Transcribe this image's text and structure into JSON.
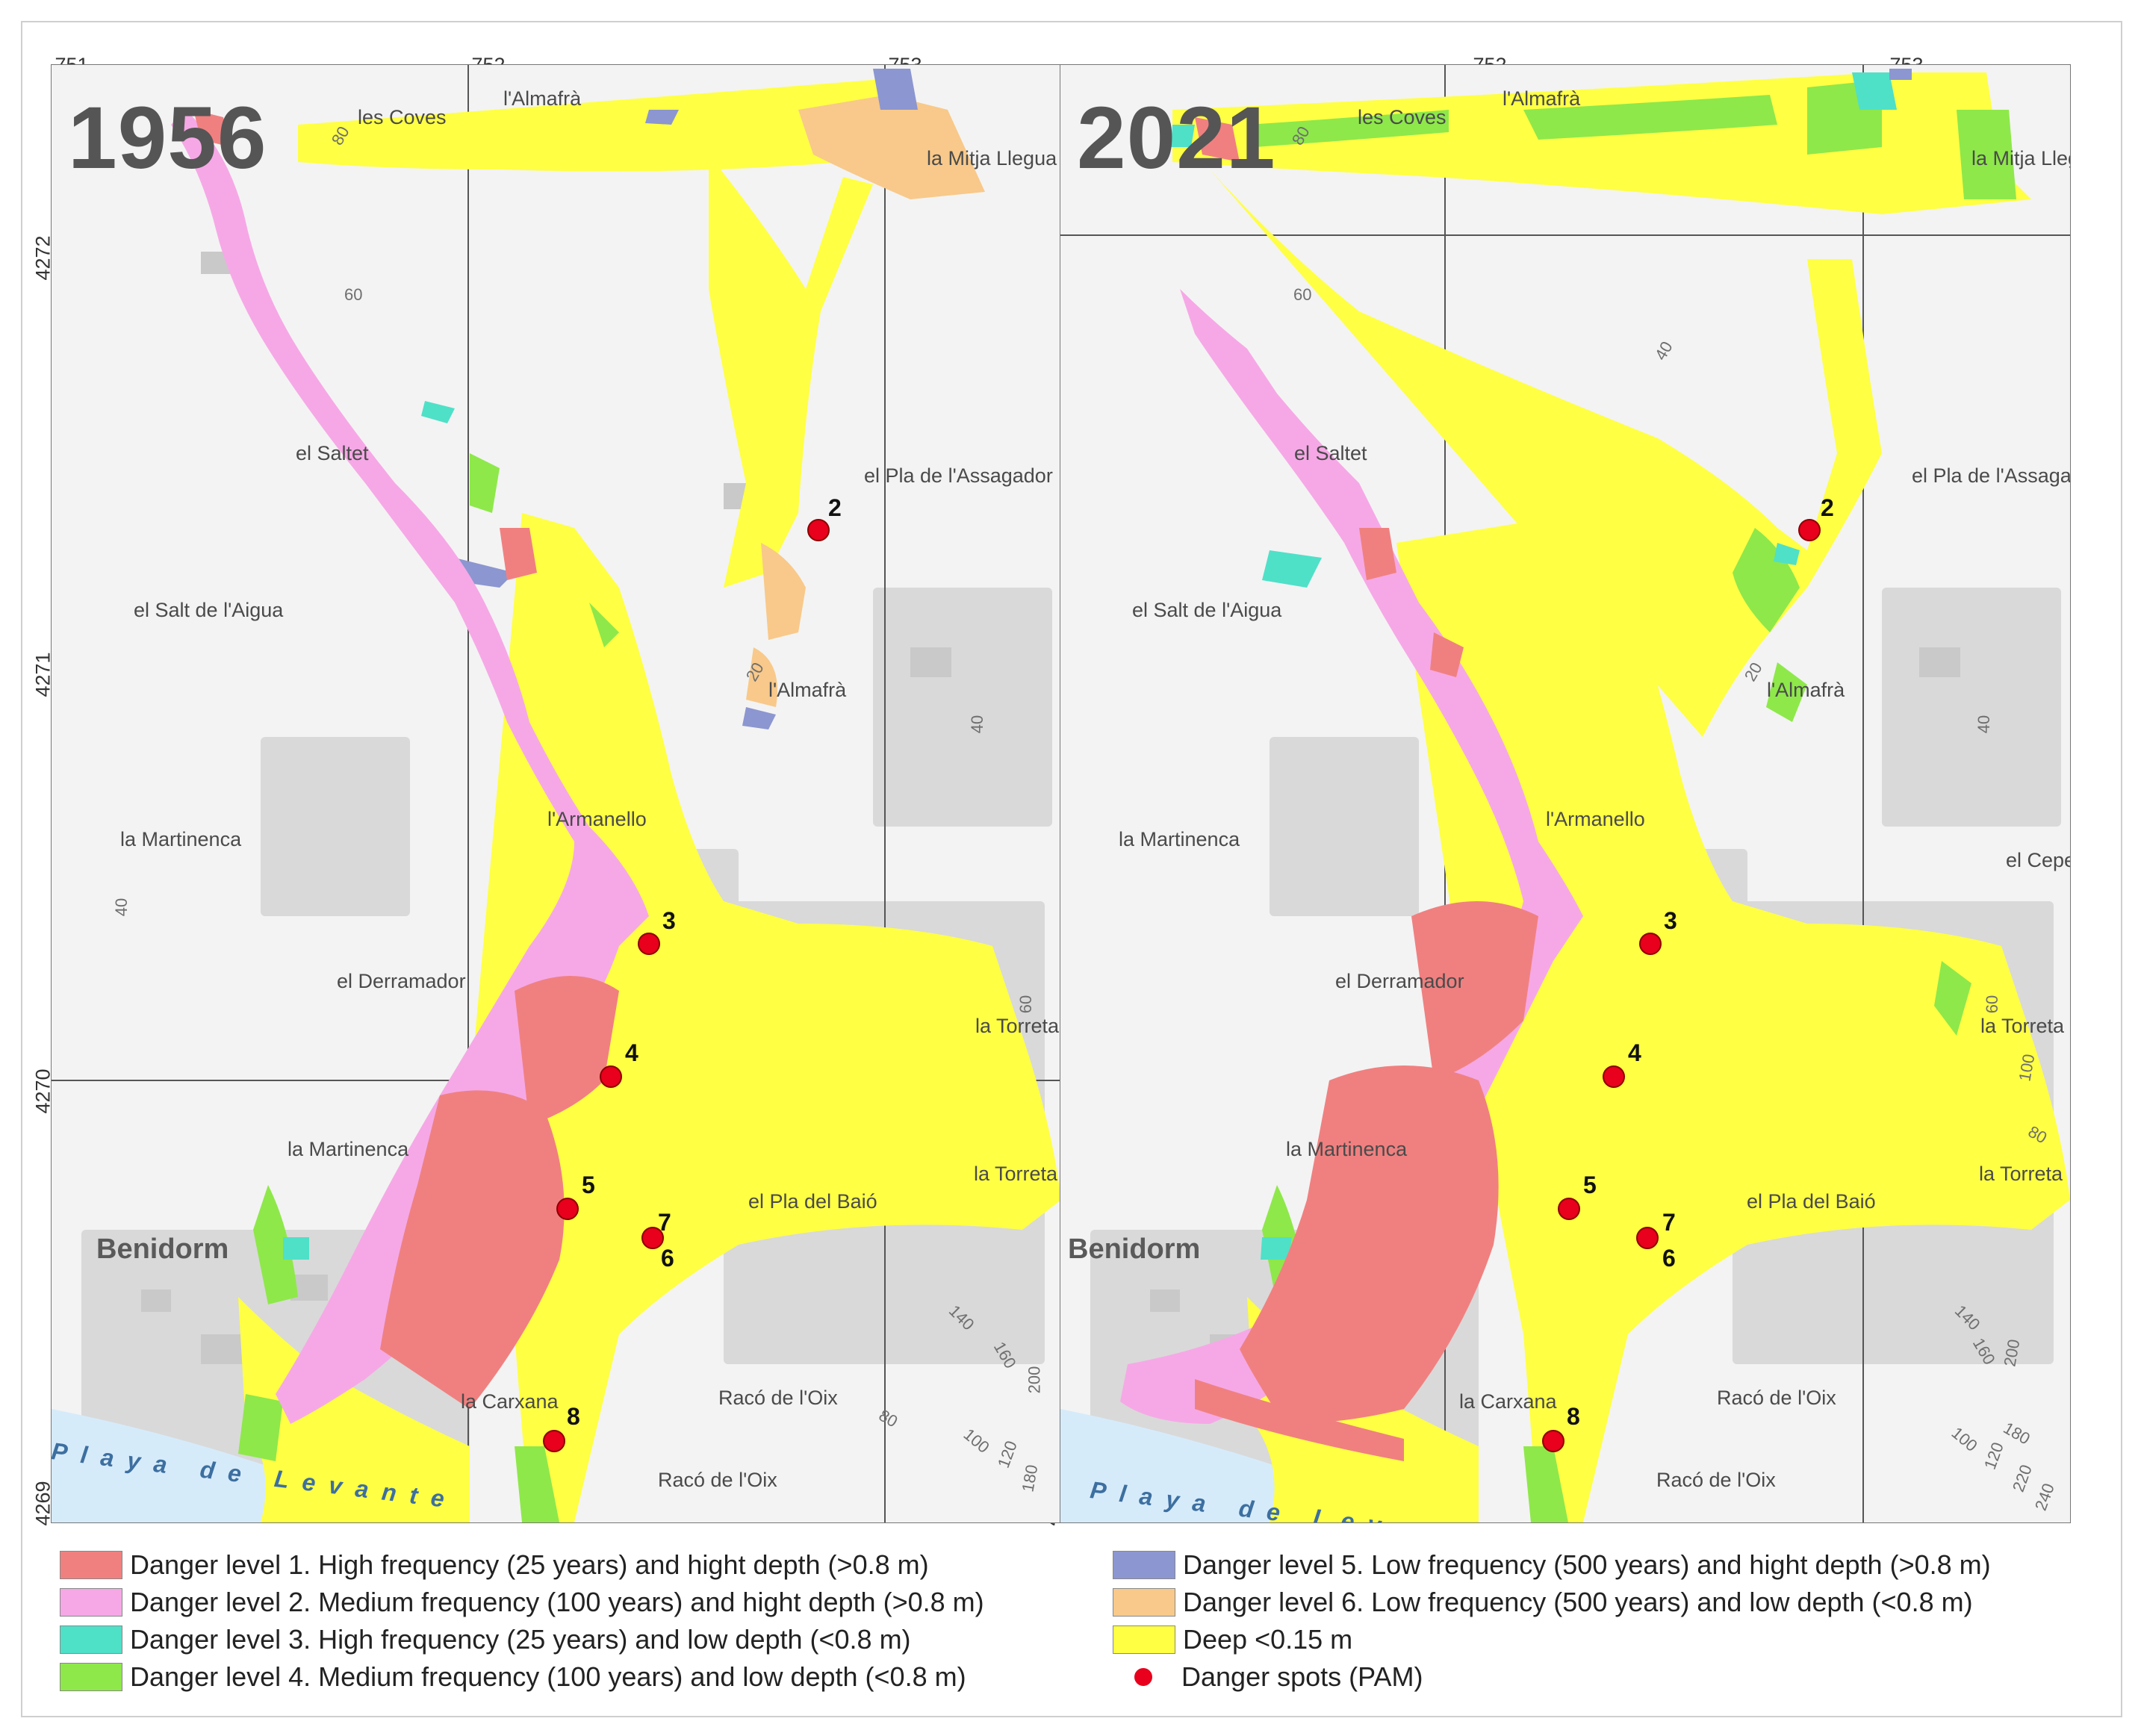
{
  "panels": [
    {
      "year": "1956",
      "x_ticks": [
        "751",
        "752",
        "753"
      ],
      "y_ticks": [
        "4272",
        "4271",
        "4270",
        "4269"
      ],
      "places": [
        "les Coves",
        "l'Almafrà",
        "la Mitja Llegua",
        "el Saltet",
        "el Pla de l'Assagador",
        "el Salt de l'Aigua",
        "l'Almafrà",
        "l'Armanello",
        "la Martinenca",
        "el Derramador",
        "la Torreta",
        "la Martinenca",
        "la Torreta",
        "el Pla del Baió",
        "Benidorm",
        "la Carxana",
        "Racó de l'Oix",
        "Racó de l'Oix"
      ],
      "coast": "Playa de Levante",
      "contours": [
        "80",
        "60",
        "20",
        "40",
        "40",
        "60",
        "140",
        "160",
        "200",
        "80",
        "100",
        "120",
        "180"
      ],
      "spots": [
        "2",
        "3",
        "4",
        "5",
        "7",
        "6",
        "8"
      ]
    },
    {
      "year": "2021",
      "x_ticks": [
        "752",
        "753"
      ],
      "y_ticks": [
        "4272",
        "4271",
        "4270",
        "4269"
      ],
      "places": [
        "les Coves",
        "l'Almafrà",
        "la Mitja Llegua",
        "el Saltet",
        "el Pla de l'Assagador",
        "el Salt de l'Aigua",
        "l'Almafrà",
        "l'Armanello",
        "la Martinenca",
        "el Cepellar",
        "el Derramador",
        "la Torreta",
        "la Martinenca",
        "la Torreta",
        "el Pla del Baió",
        "Benidorm",
        "la Carxana",
        "Racó de l'Oix",
        "Racó de l'Oix"
      ],
      "coast": "Playa de Levante",
      "contours": [
        "80",
        "60",
        "40",
        "20",
        "40",
        "60",
        "100",
        "80",
        "140",
        "160",
        "200",
        "180",
        "100",
        "120",
        "220",
        "240"
      ],
      "spots": [
        "2",
        "3",
        "4",
        "5",
        "7",
        "6",
        "8"
      ]
    }
  ],
  "legend": [
    {
      "label": "Danger level 1. High frequency (25  years) and  hight depth (>0.8 m)",
      "color": "#f08080"
    },
    {
      "label": "Danger level 2. Medium frequency (100  years)  and  hight depth (>0.8 m)",
      "color": "#f6a8e6"
    },
    {
      "label": "Danger level 3. High frequency (25  years) and  low depth (<0.8 m)",
      "color": "#4fe0c8"
    },
    {
      "label": "Danger level 4. Medium frequency (100 years) and  low depth (<0.8 m)",
      "color": "#8ee84a"
    },
    {
      "label": "Danger level 5. Low frequency (500  years)  and  hight depth (>0.8 m)",
      "color": "#8c96d0"
    },
    {
      "label": "Danger level 6. Low frequency (500  years) and  low depth (<0.8 m)",
      "color": "#f8c98a"
    },
    {
      "label": "Deep <0.15 m",
      "color": "#ffff44"
    },
    {
      "label": "Danger spots (PAM)",
      "color": "#e8001c"
    }
  ]
}
